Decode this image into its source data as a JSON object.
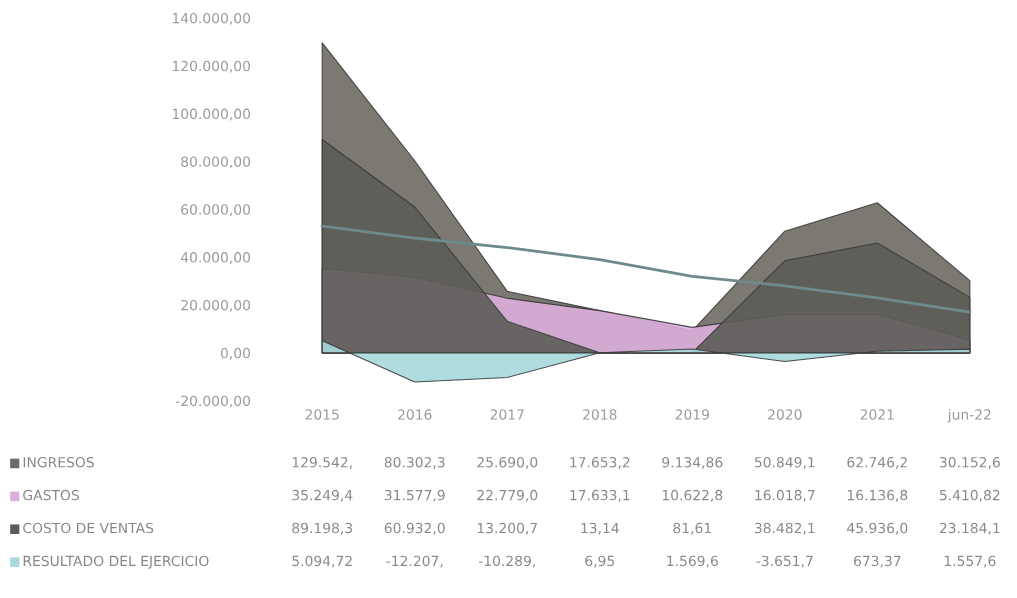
{
  "chart_data": {
    "type": "area",
    "categories": [
      "2015",
      "2016",
      "2017",
      "2018",
      "2019",
      "2020",
      "2021",
      "jun-22"
    ],
    "series": [
      {
        "name": "INGRESOS",
        "color": "#6e6a64",
        "values": [
          129542,
          80302.3,
          25690.0,
          17653.2,
          9134.86,
          50849.1,
          62746.2,
          30152.6
        ],
        "value_labels": [
          "129.542,",
          "80.302,3",
          "25.690,0",
          "17.653,2",
          "9.134,86",
          "50.849,1",
          "62.746,2",
          "30.152,6"
        ]
      },
      {
        "name": "GASTOS",
        "color": "#dcaedc",
        "values": [
          35249.4,
          31577.9,
          22779.0,
          17633.1,
          10622.8,
          16018.7,
          16136.8,
          5410.82
        ],
        "value_labels": [
          "35.249,4",
          "31.577,9",
          "22.779,0",
          "17.633,1",
          "10.622,8",
          "16.018,7",
          "16.136,8",
          "5.410,82"
        ]
      },
      {
        "name": "COSTO DE VENTAS",
        "color": "#5c5c57",
        "values": [
          89198.3,
          60932.0,
          13200.7,
          13.14,
          81.61,
          38482.1,
          45936.0,
          23184.1
        ],
        "value_labels": [
          "89.198,3",
          "60.932,0",
          "13.200,7",
          "13,14",
          "81,61",
          "38.482,1",
          "45.936,0",
          "23.184,1"
        ]
      },
      {
        "name": "RESULTADO DEL EJERCICIO",
        "color": "#a6d8dc",
        "values": [
          5094.72,
          -12207,
          -10289,
          6.95,
          1569.6,
          -3651.7,
          673.37,
          1557.6
        ],
        "value_labels": [
          "5.094,72",
          "-12.207,",
          "-10.289,",
          "6,95",
          "1.569,6",
          "-3.651,7",
          "673,37",
          "1.557,6"
        ]
      },
      {
        "type": "line",
        "color": "#6f8a8c",
        "values": [
          53000,
          48000,
          44000,
          39000,
          32000,
          28000,
          23000,
          17000
        ]
      }
    ],
    "ylim": [
      -20000,
      140000
    ],
    "yticks": [
      {
        "value": -20000,
        "label": "-20.000,00"
      },
      {
        "value": 0,
        "label": "0,00"
      },
      {
        "value": 20000,
        "label": "20.000,00"
      },
      {
        "value": 40000,
        "label": "40.000,00"
      },
      {
        "value": 60000,
        "label": "60.000,00"
      },
      {
        "value": 80000,
        "label": "80.000,00"
      },
      {
        "value": 100000,
        "label": "100.000,00"
      },
      {
        "value": 120000,
        "label": "120.000,00"
      },
      {
        "value": 140000,
        "label": "140.000,00"
      }
    ],
    "grid": false,
    "legend": "bottom"
  }
}
